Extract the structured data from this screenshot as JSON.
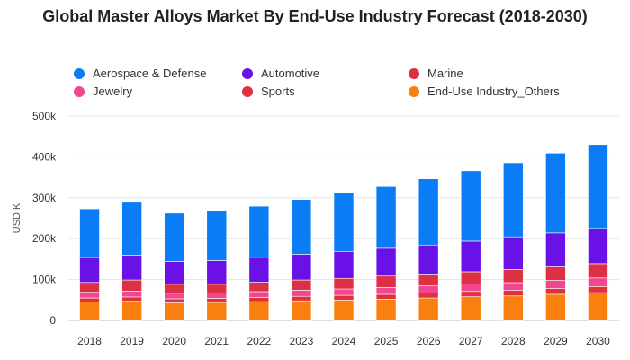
{
  "chart_data": {
    "type": "bar",
    "stacked": true,
    "title": "Global Master Alloys Market By End-Use Industry Forecast (2018-2030)",
    "ylabel": "USD K",
    "xlabel": "",
    "ylim": [
      0,
      500000
    ],
    "yticks": [
      0,
      100000,
      200000,
      300000,
      400000,
      500000
    ],
    "ytick_labels": [
      "0",
      "100k",
      "200k",
      "300k",
      "400k",
      "500k"
    ],
    "grid": "horizontal",
    "legend_position": "top",
    "categories": [
      "2018",
      "2019",
      "2020",
      "2021",
      "2022",
      "2023",
      "2024",
      "2025",
      "2026",
      "2027",
      "2028",
      "2029",
      "2030"
    ],
    "series": [
      {
        "name": "End-Use Industry_Others",
        "color": "#F97F0E",
        "values": [
          45000,
          47000,
          43000,
          44000,
          46000,
          48000,
          50000,
          52000,
          55000,
          58000,
          60000,
          64000,
          68000
        ]
      },
      {
        "name": "Sports",
        "color": "#E3303F",
        "values": [
          10000,
          10500,
          10000,
          10000,
          10500,
          11000,
          11500,
          12000,
          12500,
          13000,
          13500,
          14000,
          15000
        ]
      },
      {
        "name": "Jewelry",
        "color": "#F0478E",
        "values": [
          14000,
          14500,
          13500,
          13500,
          14000,
          15000,
          15500,
          16500,
          17000,
          18000,
          19000,
          20000,
          21000
        ]
      },
      {
        "name": "Marine",
        "color": "#DD3045",
        "values": [
          24000,
          27000,
          22000,
          21000,
          23000,
          25000,
          26000,
          28000,
          29000,
          30000,
          32000,
          33000,
          35000
        ]
      },
      {
        "name": "Automotive",
        "color": "#6A11E8",
        "values": [
          61000,
          61000,
          56000,
          58000,
          61000,
          63000,
          66000,
          68000,
          71000,
          75000,
          80000,
          83000,
          86000
        ]
      },
      {
        "name": "Aerospace & Defense",
        "color": "#0A7DF6",
        "values": [
          119000,
          129000,
          118000,
          121000,
          125000,
          134000,
          144000,
          151000,
          162000,
          172000,
          181000,
          195000,
          205000
        ]
      }
    ]
  },
  "legend": [
    {
      "label": "Aerospace & Defense",
      "color": "#0A7DF6"
    },
    {
      "label": "Automotive",
      "color": "#6A11E8"
    },
    {
      "label": "Marine",
      "color": "#DD3045"
    },
    {
      "label": "Jewelry",
      "color": "#F0478E"
    },
    {
      "label": "Sports",
      "color": "#E3303F"
    },
    {
      "label": "End-Use Industry_Others",
      "color": "#F97F0E"
    }
  ]
}
